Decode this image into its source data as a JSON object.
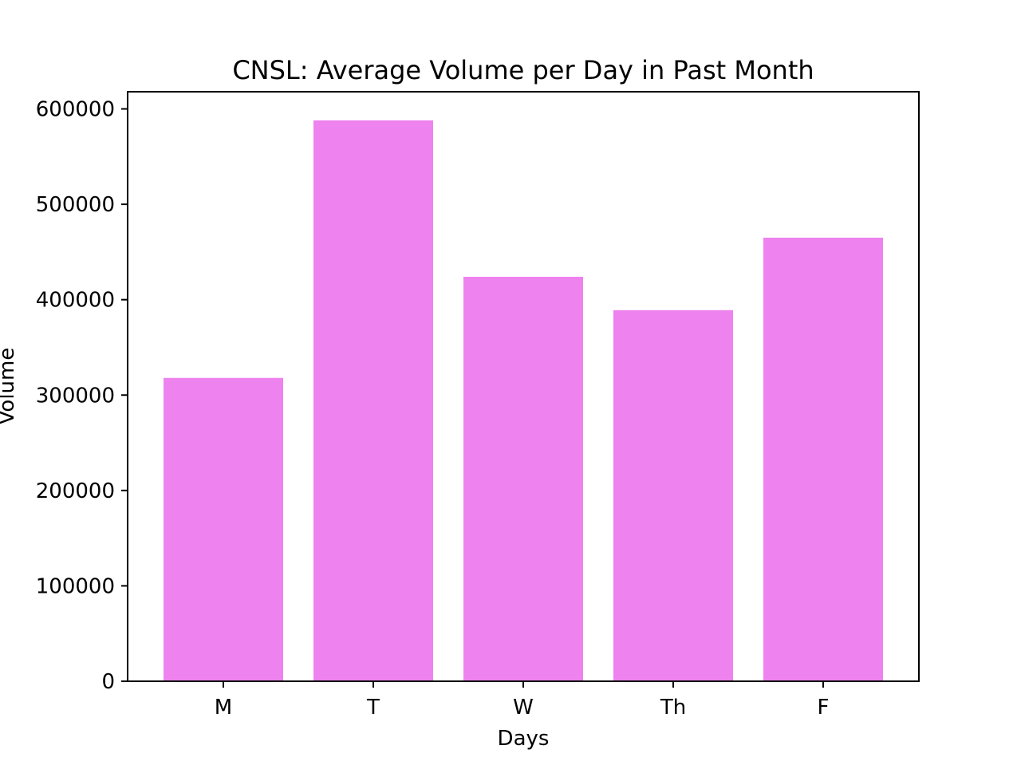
{
  "chart_data": {
    "type": "bar",
    "title": "CNSL: Average Volume per Day in Past Month",
    "xlabel": "Days",
    "ylabel": "Volume",
    "categories": [
      "M",
      "T",
      "W",
      "Th",
      "F"
    ],
    "values": [
      318000,
      588000,
      424000,
      389000,
      465000
    ],
    "ylim": [
      0,
      618000
    ],
    "yticks": [
      0,
      100000,
      200000,
      300000,
      400000,
      500000,
      600000
    ],
    "ytick_labels": [
      "0",
      "100000",
      "200000",
      "300000",
      "400000",
      "500000",
      "600000"
    ],
    "bar_color": "#ee82ee",
    "grid": false,
    "legend": "none"
  }
}
